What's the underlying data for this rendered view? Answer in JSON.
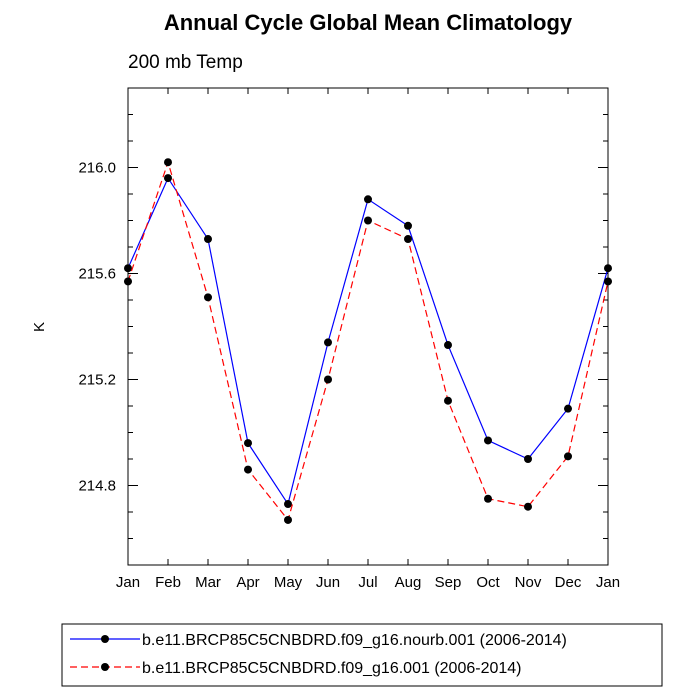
{
  "chart_data": {
    "type": "line",
    "title": "Annual Cycle Global Mean Climatology",
    "subtitle": "200 mb Temp",
    "xlabel": "",
    "ylabel": "K",
    "categories": [
      "Jan",
      "Feb",
      "Mar",
      "Apr",
      "May",
      "Jun",
      "Jul",
      "Aug",
      "Sep",
      "Oct",
      "Nov",
      "Dec",
      "Jan"
    ],
    "ylim": [
      214.5,
      216.3
    ],
    "yticks": [
      214.8,
      215.2,
      215.6,
      216.0
    ],
    "ytick_labels": [
      "214.8",
      "215.2",
      "215.6",
      "216.0"
    ],
    "grid": false,
    "legend_position": "bottom",
    "series": [
      {
        "name": "b.e11.BRCP85C5CNBDRD.f09_g16.nourb.001 (2006-2014)",
        "color": "#0000ff",
        "dash": "solid",
        "values": [
          215.62,
          215.96,
          215.73,
          214.96,
          214.73,
          215.34,
          215.88,
          215.78,
          215.33,
          214.97,
          214.9,
          215.09,
          215.62
        ]
      },
      {
        "name": "b.e11.BRCP85C5CNBDRD.f09_g16.001 (2006-2014)",
        "color": "#ff0000",
        "dash": "dashed",
        "values": [
          215.57,
          216.02,
          215.51,
          214.86,
          214.67,
          215.2,
          215.8,
          215.73,
          215.12,
          214.75,
          214.72,
          214.91,
          215.57
        ]
      }
    ]
  }
}
